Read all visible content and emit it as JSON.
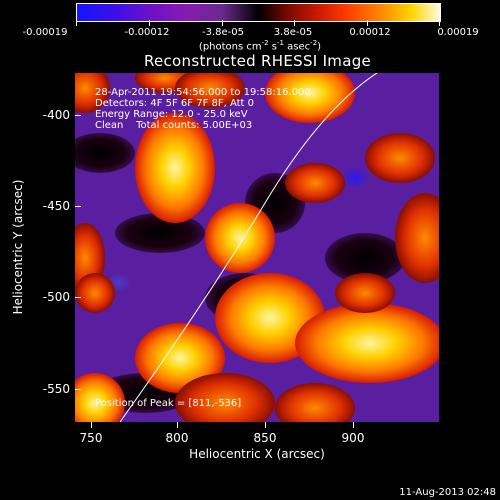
{
  "colorbar": {
    "tick_labels": [
      "-0.00019",
      "-0.00012",
      "-3.8e-05",
      "3.8e-05",
      "0.00012",
      "0.00019"
    ],
    "units_prefix": "(photons cm",
    "units_exp1": "-2",
    "units_mid": " s",
    "units_exp2": "-1",
    "units_mid2": " asec",
    "units_exp3": "-2",
    "units_suffix": ")"
  },
  "plot": {
    "title": "Reconstructed RHESSI Image",
    "info": {
      "time": "28-Apr-2011 19:54:56.000 to 19:58:16.000",
      "detectors": "Detectors: 4F 5F 6F 7F 8F, Att 0",
      "energy": "Energy Range: 12.0 - 25.0 keV",
      "method": "Clean    Total counts: 5.00E+03"
    },
    "peak": "Position of Peak = [811,-536]",
    "xlabel": "Heliocentric X (arcsec)",
    "ylabel": "Heliocentric Y (arcsec)",
    "x_ticks": [
      "750",
      "800",
      "850",
      "900"
    ],
    "y_ticks": [
      "-400",
      "-450",
      "-500",
      "-550"
    ]
  },
  "footer": {
    "date": "11-Aug-2013 02:48"
  }
}
